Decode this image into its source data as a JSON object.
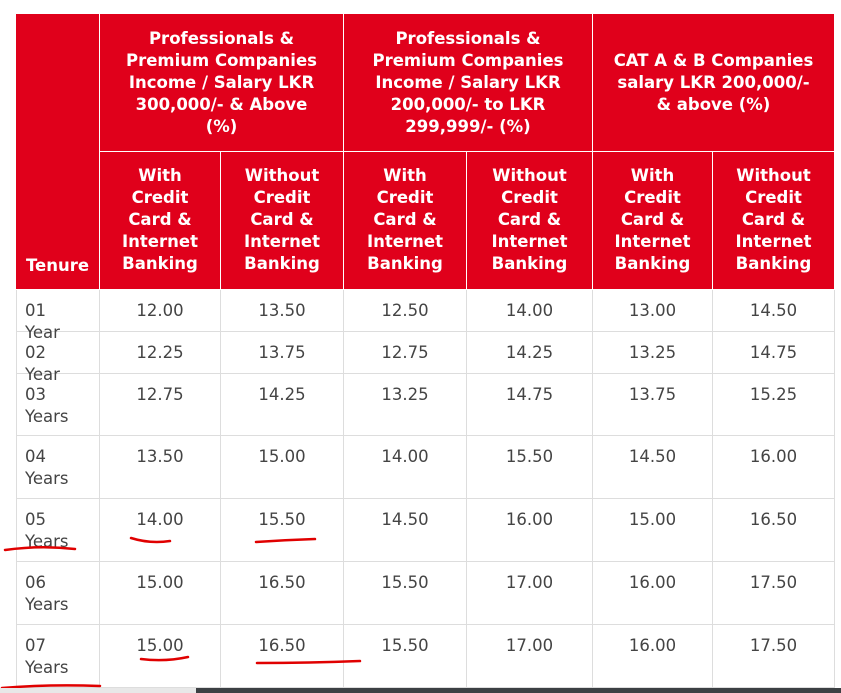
{
  "table": {
    "header": {
      "tenure": "Tenure",
      "groups": [
        "Professionals & Premium Companies Income / Salary LKR 300,000/- & Above (%)",
        "Professionals & Premium Companies Income / Salary LKR 200,000/- to LKR 299,999/- (%)",
        "CAT A & B Companies salary LKR 200,000/- & above (%)"
      ],
      "sub": [
        "With Credit Card & Internet Banking",
        "Without Credit Card & Internet Banking",
        "With Credit Card & Internet Banking",
        "Without Credit Card & Internet Banking",
        "With Credit Card & Internet Banking",
        "Without Credit Card & Internet Banking"
      ]
    },
    "rows": [
      [
        "01 Year",
        "12.00",
        "13.50",
        "12.50",
        "14.00",
        "13.00",
        "14.50"
      ],
      [
        "02 Year",
        "12.25",
        "13.75",
        "12.75",
        "14.25",
        "13.25",
        "14.75"
      ],
      [
        "03 Years",
        "12.75",
        "14.25",
        "13.25",
        "14.75",
        "13.75",
        "15.25"
      ],
      [
        "04 Years",
        "13.50",
        "15.00",
        "14.00",
        "15.50",
        "14.50",
        "16.00"
      ],
      [
        "05 Years",
        "14.00",
        "15.50",
        "14.50",
        "16.00",
        "15.00",
        "16.50"
      ],
      [
        "06 Years",
        "15.00",
        "16.50",
        "15.50",
        "17.00",
        "16.00",
        "17.50"
      ],
      [
        "07 Years",
        "15.00",
        "16.50",
        "15.50",
        "17.00",
        "16.00",
        "17.50"
      ]
    ]
  }
}
